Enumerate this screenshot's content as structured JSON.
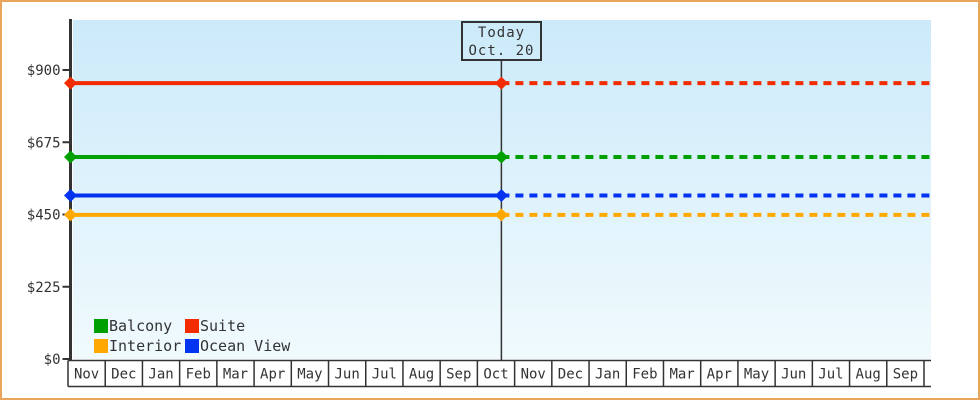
{
  "window": {
    "border_color": "#e8a55c"
  },
  "chart_data": {
    "type": "line",
    "title": "",
    "today_annotation": {
      "line1": "Today",
      "line2": "Oct. 20",
      "month": "Oct",
      "day": 20,
      "day_fraction": 0.645
    },
    "y_axis": {
      "min": 0,
      "max": 900,
      "tick_values": [
        0,
        225,
        450,
        675,
        900
      ],
      "tick_labels": [
        "$0",
        "$225",
        "$450",
        "$675",
        "$900"
      ]
    },
    "x_axis": {
      "month_labels": [
        "Nov",
        "Dec",
        "Jan",
        "Feb",
        "Mar",
        "Apr",
        "May",
        "Jun",
        "Jul",
        "Aug",
        "Sep",
        "Oct",
        "Nov",
        "Dec",
        "Jan",
        "Feb",
        "Mar",
        "Apr",
        "May",
        "Jun",
        "Jul",
        "Aug",
        "Sep"
      ],
      "today_month_index": 11
    },
    "series": [
      {
        "name": "Suite",
        "color": "#f22c00",
        "price": 859,
        "style_before_today": "solid",
        "style_after_today": "dashed"
      },
      {
        "name": "Balcony",
        "color": "#00a000",
        "price": 629,
        "style_before_today": "solid",
        "style_after_today": "dashed"
      },
      {
        "name": "Ocean View",
        "color": "#0133f0",
        "price": 509,
        "style_before_today": "solid",
        "style_after_today": "dashed"
      },
      {
        "name": "Interior",
        "color": "#ffa800",
        "price": 449,
        "style_before_today": "solid",
        "style_after_today": "dashed"
      }
    ],
    "legend": {
      "position": "bottom-left",
      "items": [
        {
          "label": "Balcony",
          "color": "#00a000"
        },
        {
          "label": "Suite",
          "color": "#f22c00"
        },
        {
          "label": "Interior",
          "color": "#ffa800"
        },
        {
          "label": "Ocean View",
          "color": "#0133f0"
        }
      ]
    },
    "colors": {
      "plot_bg_top": "#cceafa",
      "plot_bg_bottom": "#f0fafd",
      "axis": "#333333"
    },
    "grid": false
  }
}
